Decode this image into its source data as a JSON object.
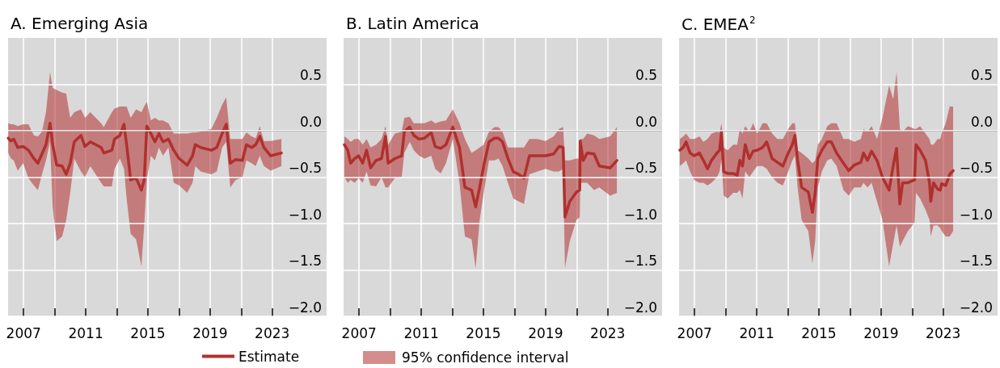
{
  "chart_data": [
    {
      "type": "line",
      "title": "A. Emerging Asia",
      "legend": "bottom",
      "annotations": [
        "95% confidence interval"
      ],
      "grid": true,
      "marker": "none",
      "xlim": [
        2006,
        2026.5
      ],
      "xticks": [
        2007,
        {
          "value": 2009,
          "label": null
        },
        2011,
        {
          "value": 2013,
          "label": null
        },
        2015,
        {
          "value": 2017,
          "label": null
        },
        2019,
        {
          "value": 2021,
          "label": null
        },
        2023
      ],
      "ylim": [
        -2,
        1
      ],
      "yticks": [
        {
          "value": -2,
          "label": "−2.0"
        },
        {
          "value": -1.5,
          "label": "−1.5"
        },
        {
          "value": -1,
          "label": "−1.0"
        },
        {
          "value": -0.5,
          "label": "−0.5"
        },
        {
          "value": 0,
          "label": "0.0"
        },
        {
          "value": 0.5,
          "label": "0.5"
        }
      ],
      "ref_lines": [
        {
          "axis": "y",
          "value": 0,
          "color": "#000000"
        }
      ],
      "x": [
        2006.01,
        2006.19,
        2006.36,
        2006.62,
        2006.97,
        2007.31,
        2007.66,
        2007.92,
        2008.18,
        2008.44,
        2008.7,
        2008.87,
        2009.13,
        2009.48,
        2009.74,
        2010.0,
        2010.26,
        2010.69,
        2010.95,
        2011.29,
        2011.99,
        2012.16,
        2012.68,
        2012.85,
        2013.2,
        2013.46,
        2013.63,
        2013.89,
        2014.24,
        2014.58,
        2014.76,
        2014.93,
        2015.19,
        2015.45,
        2015.71,
        2015.97,
        2016.32,
        2016.66,
        2017.01,
        2017.53,
        2017.87,
        2018.05,
        2018.39,
        2019.09,
        2019.43,
        2019.78,
        2020.04,
        2020.3,
        2020.65,
        2021.08,
        2021.34,
        2021.68,
        2021.94,
        2022.2,
        2022.46,
        2022.9,
        2023.59
      ],
      "series": [
        {
          "name": "Estimate",
          "color": "#b0302e",
          "upper": [
            0.08,
            0.07,
            0.07,
            0.05,
            0.07,
            0.07,
            -0.05,
            -0.06,
            -0.01,
            0.2,
            0.63,
            0.46,
            0.44,
            0.41,
            0.4,
            0.14,
            0.2,
            0.23,
            0.14,
            0.2,
            0.08,
            0.04,
            0.2,
            0.24,
            0.26,
            0.26,
            0.26,
            0.14,
            0.23,
            0.2,
            0.26,
            0.31,
            0.11,
            0.14,
            0.11,
            0.11,
            0.08,
            -0.03,
            -0.03,
            -0.03,
            -0.02,
            -0.02,
            -0.01,
            0.02,
            0.14,
            0.28,
            0.36,
            -0.09,
            -0.09,
            -0.09,
            -0.02,
            -0.06,
            -0.08,
            0.05,
            -0.11,
            -0.11,
            -0.09
          ],
          "lower": [
            -0.24,
            -0.3,
            -0.32,
            -0.43,
            -0.35,
            -0.51,
            -0.59,
            -0.64,
            -0.47,
            -0.32,
            -0.12,
            -0.82,
            -1.19,
            -1.14,
            -0.96,
            -0.67,
            -0.3,
            -0.44,
            -0.5,
            -0.38,
            -0.56,
            -0.6,
            -0.6,
            -0.41,
            -0.3,
            -0.41,
            -0.73,
            -1.11,
            -1.17,
            -1.46,
            -1.02,
            -0.53,
            -0.27,
            -0.32,
            -0.18,
            -0.27,
            -0.18,
            -0.56,
            -0.59,
            -0.67,
            -0.56,
            -0.38,
            -0.44,
            -0.47,
            -0.44,
            -0.18,
            -0.12,
            -0.61,
            -0.53,
            -0.5,
            -0.32,
            -0.35,
            -0.38,
            -0.27,
            -0.38,
            -0.43,
            -0.38
          ],
          "values": [
            -0.08,
            -0.11,
            -0.09,
            -0.18,
            -0.17,
            -0.21,
            -0.3,
            -0.35,
            -0.25,
            -0.15,
            0.08,
            -0.15,
            -0.37,
            -0.38,
            -0.47,
            -0.35,
            -0.12,
            -0.05,
            -0.17,
            -0.12,
            -0.18,
            -0.24,
            -0.21,
            -0.09,
            -0.05,
            0.07,
            -0.15,
            -0.53,
            -0.51,
            -0.64,
            -0.53,
            0.05,
            -0.03,
            -0.12,
            -0.03,
            -0.12,
            -0.09,
            -0.21,
            -0.3,
            -0.37,
            -0.27,
            -0.15,
            -0.18,
            -0.21,
            -0.18,
            -0.03,
            0.07,
            -0.35,
            -0.31,
            -0.32,
            -0.15,
            -0.18,
            -0.15,
            -0.06,
            -0.18,
            -0.27,
            -0.24
          ]
        }
      ]
    },
    {
      "type": "line",
      "title": "B. Latin America",
      "grid": true,
      "marker": "none",
      "xlim": [
        2006,
        2026.5
      ],
      "xticks": [
        2007,
        {
          "value": 2009,
          "label": null
        },
        2011,
        {
          "value": 2013,
          "label": null
        },
        2015,
        {
          "value": 2017,
          "label": null
        },
        2019,
        {
          "value": 2021,
          "label": null
        },
        2023
      ],
      "ylim": [
        -2,
        1
      ],
      "yticks": [
        {
          "value": -2,
          "label": "−2.0"
        },
        {
          "value": -1.5,
          "label": "−1.5"
        },
        {
          "value": -1,
          "label": "−1.0"
        },
        {
          "value": -0.5,
          "label": "−0.5"
        },
        {
          "value": 0,
          "label": "0.0"
        },
        {
          "value": 0.5,
          "label": "0.5"
        }
      ],
      "ref_lines": [
        {
          "axis": "y",
          "value": 0,
          "color": "#000000"
        }
      ],
      "x": [
        2006.05,
        2006.27,
        2006.45,
        2006.71,
        2006.97,
        2007.23,
        2007.48,
        2007.74,
        2008.09,
        2008.44,
        2008.7,
        2008.87,
        2009.3,
        2009.74,
        2009.91,
        2010.26,
        2010.52,
        2010.86,
        2011.21,
        2011.64,
        2011.9,
        2012.25,
        2012.59,
        2013.03,
        2013.46,
        2013.81,
        2014.24,
        2014.5,
        2014.76,
        2015.02,
        2015.36,
        2015.71,
        2015.97,
        2016.23,
        2016.58,
        2016.92,
        2017.27,
        2017.61,
        2017.96,
        2018.48,
        2019.0,
        2019.52,
        2019.87,
        2020.13,
        2020.25,
        2020.56,
        2020.99,
        2021.2,
        2021.23,
        2021.42,
        2021.68,
        2022.12,
        2022.46,
        2023.16,
        2023.59
      ],
      "series": [
        {
          "color": "#b0302e",
          "upper": [
            -0.06,
            -0.09,
            -0.12,
            -0.09,
            -0.09,
            -0.15,
            -0.09,
            -0.18,
            -0.15,
            -0.09,
            0.05,
            -0.15,
            -0.03,
            -0.01,
            0.14,
            0.15,
            0.08,
            0.08,
            0.08,
            0.11,
            0.08,
            0.1,
            0.11,
            0.23,
            0.08,
            -0.09,
            -0.24,
            -0.21,
            -0.18,
            -0.15,
            -0.01,
            0.04,
            0.04,
            -0.01,
            -0.18,
            -0.18,
            -0.18,
            -0.18,
            -0.09,
            -0.09,
            -0.11,
            -0.06,
            0.02,
            0.04,
            -0.32,
            -0.32,
            -0.3,
            -0.3,
            -0.09,
            -0.09,
            -0.03,
            -0.05,
            -0.09,
            -0.06,
            0.04
          ],
          "lower": [
            -0.5,
            -0.56,
            -0.53,
            -0.56,
            -0.51,
            -0.56,
            -0.44,
            -0.59,
            -0.6,
            -0.5,
            -0.61,
            -0.61,
            -0.51,
            -0.5,
            -0.24,
            -0.12,
            -0.21,
            -0.27,
            -0.3,
            -0.27,
            -0.41,
            -0.46,
            -0.35,
            -0.09,
            -0.56,
            -1.14,
            -1.17,
            -1.48,
            -0.96,
            -0.67,
            -0.32,
            -0.32,
            -0.3,
            -0.38,
            -0.56,
            -0.73,
            -0.76,
            -0.79,
            -0.47,
            -0.44,
            -0.41,
            -0.44,
            -0.44,
            -0.41,
            -1.48,
            -1.19,
            -0.96,
            -0.93,
            -0.56,
            -0.56,
            -0.56,
            -0.64,
            -0.61,
            -0.7,
            -0.67
          ],
          "values": [
            -0.15,
            -0.21,
            -0.35,
            -0.3,
            -0.27,
            -0.35,
            -0.21,
            -0.4,
            -0.32,
            -0.3,
            -0.06,
            -0.35,
            -0.3,
            -0.27,
            -0.01,
            0.04,
            -0.05,
            -0.09,
            -0.08,
            -0.02,
            -0.17,
            -0.19,
            -0.15,
            0.04,
            -0.18,
            -0.61,
            -0.64,
            -0.82,
            -0.61,
            -0.38,
            -0.12,
            -0.08,
            -0.08,
            -0.12,
            -0.3,
            -0.44,
            -0.47,
            -0.51,
            -0.27,
            -0.27,
            -0.27,
            -0.25,
            -0.17,
            -0.18,
            -0.93,
            -0.76,
            -0.66,
            -0.64,
            -0.11,
            -0.32,
            -0.24,
            -0.25,
            -0.38,
            -0.4,
            -0.32
          ]
        }
      ]
    },
    {
      "type": "line",
      "title": "C. EMEA$^{2}$",
      "grid": true,
      "marker": "none",
      "xlim": [
        2006,
        2026.5
      ],
      "xticks": [
        2007,
        {
          "value": 2009,
          "label": null
        },
        2011,
        {
          "value": 2013,
          "label": null
        },
        2015,
        {
          "value": 2017,
          "label": null
        },
        2019,
        {
          "value": 2021,
          "label": null
        },
        2023
      ],
      "ylim": [
        -2,
        1
      ],
      "yticks": [
        {
          "value": -2,
          "label": "−2.0"
        },
        {
          "value": -1.5,
          "label": "−1.5"
        },
        {
          "value": -1,
          "label": "−1.0"
        },
        {
          "value": -0.5,
          "label": "−0.5"
        },
        {
          "value": 0,
          "label": "0.0"
        },
        {
          "value": 0.5,
          "label": "0.5"
        }
      ],
      "ref_lines": [
        {
          "axis": "y",
          "value": 0,
          "color": "#000000"
        }
      ],
      "x": [
        2006.05,
        2006.27,
        2006.45,
        2006.71,
        2006.97,
        2007.31,
        2007.57,
        2007.83,
        2008.09,
        2008.44,
        2008.61,
        2008.73,
        2008.87,
        2009.13,
        2009.48,
        2009.74,
        2009.91,
        2010.08,
        2010.26,
        2010.52,
        2010.77,
        2011.03,
        2011.38,
        2011.64,
        2011.99,
        2012.33,
        2012.68,
        2013.03,
        2013.29,
        2013.46,
        2013.63,
        2013.89,
        2014.32,
        2014.58,
        2014.76,
        2014.93,
        2015.19,
        2015.54,
        2015.8,
        2016.14,
        2016.58,
        2016.92,
        2017.27,
        2017.7,
        2017.87,
        2018.13,
        2018.39,
        2018.74,
        2019.09,
        2019.52,
        2019.78,
        2020.0,
        2020.21,
        2020.39,
        2020.73,
        2021.16,
        2021.25,
        2021.51,
        2021.86,
        2022.12,
        2022.2,
        2022.38,
        2022.64,
        2022.81,
        2022.9,
        2023.16,
        2023.42,
        2023.64
      ],
      "series": [
        {
          "color": "#b0302e",
          "upper": [
            -0.09,
            -0.06,
            -0.03,
            -0.09,
            -0.09,
            -0.06,
            -0.12,
            -0.09,
            -0.03,
            -0.01,
            -0.02,
            0.08,
            -0.18,
            -0.21,
            -0.15,
            -0.15,
            0.02,
            -0.03,
            0.05,
            -0.01,
            0.08,
            -0.03,
            0.08,
            0.08,
            -0.03,
            -0.09,
            -0.09,
            0.02,
            0.08,
            0.08,
            -0.21,
            -0.24,
            -0.3,
            -0.35,
            -0.32,
            -0.15,
            -0.09,
            0.05,
            0.08,
            0.08,
            -0.09,
            -0.09,
            -0.12,
            -0.09,
            0.02,
            -0.01,
            0.05,
            -0.09,
            0.14,
            0.49,
            0.34,
            0.63,
            0.02,
            -0.01,
            0.05,
            0.02,
            0.02,
            0.05,
            -0.03,
            -0.09,
            -0.15,
            -0.15,
            -0.09,
            -0.09,
            -0.03,
            0.08,
            0.26,
            0.26
          ],
          "lower": [
            -0.38,
            -0.35,
            -0.32,
            -0.44,
            -0.53,
            -0.56,
            -0.56,
            -0.59,
            -0.56,
            -0.5,
            -0.44,
            -0.3,
            -0.7,
            -0.73,
            -0.67,
            -0.67,
            -0.64,
            -0.73,
            -0.44,
            -0.5,
            -0.44,
            -0.38,
            -0.38,
            -0.41,
            -0.5,
            -0.56,
            -0.59,
            -0.44,
            -0.32,
            -0.27,
            -0.61,
            -0.96,
            -1.08,
            -1.43,
            -1.19,
            -0.61,
            -0.44,
            -0.32,
            -0.3,
            -0.38,
            -0.64,
            -0.7,
            -0.61,
            -0.61,
            -0.56,
            -0.61,
            -0.56,
            -0.76,
            -0.96,
            -1.46,
            -1.22,
            -1.02,
            -1.25,
            -1.19,
            -1.08,
            -0.99,
            -0.67,
            -0.73,
            -0.85,
            -0.96,
            -1.14,
            -1.02,
            -1.02,
            -1.05,
            -1.08,
            -1.14,
            -1.14,
            -1.08
          ],
          "values": [
            -0.21,
            -0.18,
            -0.12,
            -0.24,
            -0.27,
            -0.24,
            -0.32,
            -0.41,
            -0.32,
            -0.24,
            -0.21,
            -0.01,
            -0.44,
            -0.46,
            -0.46,
            -0.48,
            -0.32,
            -0.38,
            -0.15,
            -0.3,
            -0.22,
            -0.21,
            -0.18,
            -0.12,
            -0.3,
            -0.34,
            -0.38,
            -0.24,
            -0.15,
            -0.05,
            -0.32,
            -0.61,
            -0.66,
            -0.88,
            -0.67,
            -0.3,
            -0.21,
            -0.12,
            -0.12,
            -0.24,
            -0.35,
            -0.43,
            -0.37,
            -0.34,
            -0.24,
            -0.32,
            -0.22,
            -0.32,
            -0.5,
            -0.64,
            -0.38,
            -0.19,
            -0.79,
            -0.56,
            -0.56,
            -0.53,
            -0.15,
            -0.21,
            -0.32,
            -0.56,
            -0.76,
            -0.56,
            -0.63,
            -0.64,
            -0.57,
            -0.59,
            -0.47,
            -0.43
          ]
        }
      ]
    }
  ]
}
